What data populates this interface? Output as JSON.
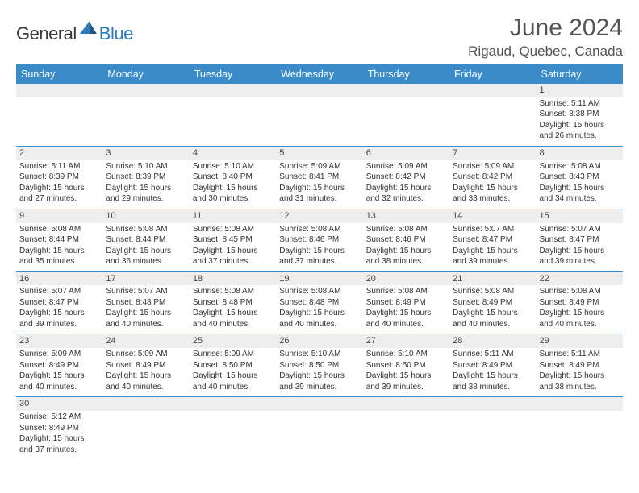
{
  "logo": {
    "general": "General",
    "blue": "Blue"
  },
  "title": "June 2024",
  "location": "Rigaud, Quebec, Canada",
  "colors": {
    "header_bg": "#3b8bc9",
    "header_text": "#ffffff",
    "daynum_bg": "#eeeeee",
    "row_border": "#3b8bc9",
    "brand_blue": "#2b7bbf",
    "body_text": "#333333"
  },
  "day_headers": [
    "Sunday",
    "Monday",
    "Tuesday",
    "Wednesday",
    "Thursday",
    "Friday",
    "Saturday"
  ],
  "weeks": [
    {
      "nums": [
        "",
        "",
        "",
        "",
        "",
        "",
        "1"
      ],
      "cells": [
        null,
        null,
        null,
        null,
        null,
        null,
        {
          "sr": "Sunrise: 5:11 AM",
          "ss": "Sunset: 8:38 PM",
          "d1": "Daylight: 15 hours",
          "d2": "and 26 minutes."
        }
      ]
    },
    {
      "nums": [
        "2",
        "3",
        "4",
        "5",
        "6",
        "7",
        "8"
      ],
      "cells": [
        {
          "sr": "Sunrise: 5:11 AM",
          "ss": "Sunset: 8:39 PM",
          "d1": "Daylight: 15 hours",
          "d2": "and 27 minutes."
        },
        {
          "sr": "Sunrise: 5:10 AM",
          "ss": "Sunset: 8:39 PM",
          "d1": "Daylight: 15 hours",
          "d2": "and 29 minutes."
        },
        {
          "sr": "Sunrise: 5:10 AM",
          "ss": "Sunset: 8:40 PM",
          "d1": "Daylight: 15 hours",
          "d2": "and 30 minutes."
        },
        {
          "sr": "Sunrise: 5:09 AM",
          "ss": "Sunset: 8:41 PM",
          "d1": "Daylight: 15 hours",
          "d2": "and 31 minutes."
        },
        {
          "sr": "Sunrise: 5:09 AM",
          "ss": "Sunset: 8:42 PM",
          "d1": "Daylight: 15 hours",
          "d2": "and 32 minutes."
        },
        {
          "sr": "Sunrise: 5:09 AM",
          "ss": "Sunset: 8:42 PM",
          "d1": "Daylight: 15 hours",
          "d2": "and 33 minutes."
        },
        {
          "sr": "Sunrise: 5:08 AM",
          "ss": "Sunset: 8:43 PM",
          "d1": "Daylight: 15 hours",
          "d2": "and 34 minutes."
        }
      ]
    },
    {
      "nums": [
        "9",
        "10",
        "11",
        "12",
        "13",
        "14",
        "15"
      ],
      "cells": [
        {
          "sr": "Sunrise: 5:08 AM",
          "ss": "Sunset: 8:44 PM",
          "d1": "Daylight: 15 hours",
          "d2": "and 35 minutes."
        },
        {
          "sr": "Sunrise: 5:08 AM",
          "ss": "Sunset: 8:44 PM",
          "d1": "Daylight: 15 hours",
          "d2": "and 36 minutes."
        },
        {
          "sr": "Sunrise: 5:08 AM",
          "ss": "Sunset: 8:45 PM",
          "d1": "Daylight: 15 hours",
          "d2": "and 37 minutes."
        },
        {
          "sr": "Sunrise: 5:08 AM",
          "ss": "Sunset: 8:46 PM",
          "d1": "Daylight: 15 hours",
          "d2": "and 37 minutes."
        },
        {
          "sr": "Sunrise: 5:08 AM",
          "ss": "Sunset: 8:46 PM",
          "d1": "Daylight: 15 hours",
          "d2": "and 38 minutes."
        },
        {
          "sr": "Sunrise: 5:07 AM",
          "ss": "Sunset: 8:47 PM",
          "d1": "Daylight: 15 hours",
          "d2": "and 39 minutes."
        },
        {
          "sr": "Sunrise: 5:07 AM",
          "ss": "Sunset: 8:47 PM",
          "d1": "Daylight: 15 hours",
          "d2": "and 39 minutes."
        }
      ]
    },
    {
      "nums": [
        "16",
        "17",
        "18",
        "19",
        "20",
        "21",
        "22"
      ],
      "cells": [
        {
          "sr": "Sunrise: 5:07 AM",
          "ss": "Sunset: 8:47 PM",
          "d1": "Daylight: 15 hours",
          "d2": "and 39 minutes."
        },
        {
          "sr": "Sunrise: 5:07 AM",
          "ss": "Sunset: 8:48 PM",
          "d1": "Daylight: 15 hours",
          "d2": "and 40 minutes."
        },
        {
          "sr": "Sunrise: 5:08 AM",
          "ss": "Sunset: 8:48 PM",
          "d1": "Daylight: 15 hours",
          "d2": "and 40 minutes."
        },
        {
          "sr": "Sunrise: 5:08 AM",
          "ss": "Sunset: 8:48 PM",
          "d1": "Daylight: 15 hours",
          "d2": "and 40 minutes."
        },
        {
          "sr": "Sunrise: 5:08 AM",
          "ss": "Sunset: 8:49 PM",
          "d1": "Daylight: 15 hours",
          "d2": "and 40 minutes."
        },
        {
          "sr": "Sunrise: 5:08 AM",
          "ss": "Sunset: 8:49 PM",
          "d1": "Daylight: 15 hours",
          "d2": "and 40 minutes."
        },
        {
          "sr": "Sunrise: 5:08 AM",
          "ss": "Sunset: 8:49 PM",
          "d1": "Daylight: 15 hours",
          "d2": "and 40 minutes."
        }
      ]
    },
    {
      "nums": [
        "23",
        "24",
        "25",
        "26",
        "27",
        "28",
        "29"
      ],
      "cells": [
        {
          "sr": "Sunrise: 5:09 AM",
          "ss": "Sunset: 8:49 PM",
          "d1": "Daylight: 15 hours",
          "d2": "and 40 minutes."
        },
        {
          "sr": "Sunrise: 5:09 AM",
          "ss": "Sunset: 8:49 PM",
          "d1": "Daylight: 15 hours",
          "d2": "and 40 minutes."
        },
        {
          "sr": "Sunrise: 5:09 AM",
          "ss": "Sunset: 8:50 PM",
          "d1": "Daylight: 15 hours",
          "d2": "and 40 minutes."
        },
        {
          "sr": "Sunrise: 5:10 AM",
          "ss": "Sunset: 8:50 PM",
          "d1": "Daylight: 15 hours",
          "d2": "and 39 minutes."
        },
        {
          "sr": "Sunrise: 5:10 AM",
          "ss": "Sunset: 8:50 PM",
          "d1": "Daylight: 15 hours",
          "d2": "and 39 minutes."
        },
        {
          "sr": "Sunrise: 5:11 AM",
          "ss": "Sunset: 8:49 PM",
          "d1": "Daylight: 15 hours",
          "d2": "and 38 minutes."
        },
        {
          "sr": "Sunrise: 5:11 AM",
          "ss": "Sunset: 8:49 PM",
          "d1": "Daylight: 15 hours",
          "d2": "and 38 minutes."
        }
      ]
    },
    {
      "nums": [
        "30",
        "",
        "",
        "",
        "",
        "",
        ""
      ],
      "cells": [
        {
          "sr": "Sunrise: 5:12 AM",
          "ss": "Sunset: 8:49 PM",
          "d1": "Daylight: 15 hours",
          "d2": "and 37 minutes."
        },
        null,
        null,
        null,
        null,
        null,
        null
      ]
    }
  ]
}
